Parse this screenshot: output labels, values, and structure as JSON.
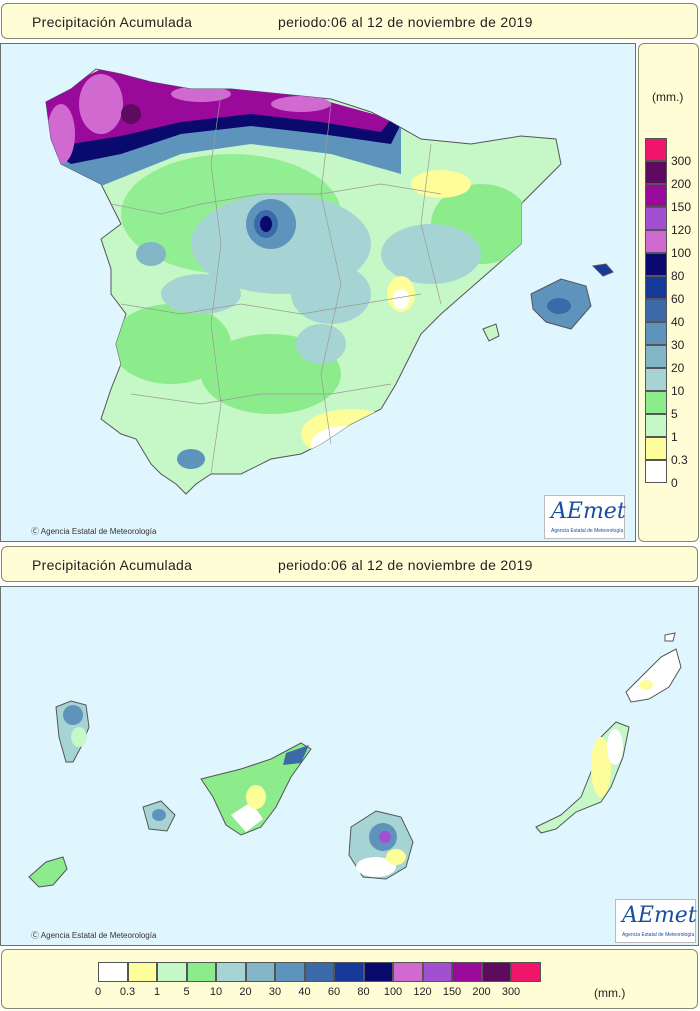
{
  "top": {
    "title": "Precipitación Acumulada",
    "period": "periodo:06 al 12 de noviembre de 2019",
    "credit": "Agencia Estatal de Meteorología",
    "logo_text": "AEmet",
    "logo_sub": "Agencia Estatal de Meteorología"
  },
  "bottom": {
    "title": "Precipitación Acumulada",
    "period": "periodo:06 al 12 de noviembre de 2019",
    "credit": "Agencia Estatal de Meteorología",
    "logo_text": "AEmet",
    "logo_sub": "Agencia Estatal de Meteorología"
  },
  "legend": {
    "unit": "(mm.)",
    "vertical_labels": [
      "300",
      "200",
      "150",
      "120",
      "100",
      "80",
      "60",
      "40",
      "30",
      "20",
      "10",
      "5",
      "1",
      "0.3",
      "0"
    ],
    "horizontal_labels": [
      "0",
      "0.3",
      "1",
      "5",
      "10",
      "20",
      "30",
      "40",
      "60",
      "80",
      "100",
      "120",
      "150",
      "200",
      "300"
    ],
    "colors": [
      "#ffffff",
      "#fdfd9a",
      "#c6f7c6",
      "#8cec8c",
      "#a6d4d4",
      "#82b6c6",
      "#5e94bc",
      "#3c6aa8",
      "#173a9a",
      "#0a0a6e",
      "#d06ad0",
      "#a050d0",
      "#9a0a9a",
      "#5e0a5e",
      "#f0146a"
    ]
  }
}
